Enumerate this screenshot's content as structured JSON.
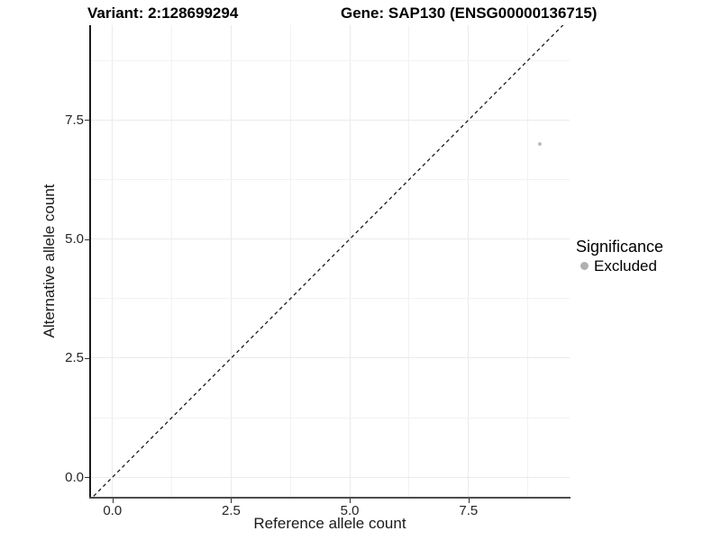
{
  "titles": {
    "variant": "Variant: 2:128699294",
    "gene": "Gene: SAP130 (ENSG00000136715)"
  },
  "legend": {
    "title": "Significance",
    "items": [
      {
        "label": "Excluded",
        "color": "#b0b0b0"
      }
    ]
  },
  "chart_data": {
    "type": "scatter",
    "title_left": "Variant: 2:128699294",
    "title_right": "Gene: SAP130 (ENSG00000136715)",
    "xlabel": "Reference allele count",
    "ylabel": "Alternative allele count",
    "xlim": [
      -0.47,
      9.63
    ],
    "ylim": [
      -0.43,
      9.49
    ],
    "x_ticks": [
      0,
      2.5,
      5,
      7.5
    ],
    "y_ticks": [
      0,
      2.5,
      5,
      7.5
    ],
    "x_tick_labels": [
      "0.0",
      "2.5",
      "5.0",
      "7.5"
    ],
    "y_tick_labels": [
      "0.0",
      "2.5",
      "5.0",
      "7.5"
    ],
    "grid": "major+minor",
    "legend_position": "right",
    "series": [
      {
        "name": "Excluded",
        "color": "#bdbdbd",
        "point_radius": 2,
        "points": [
          {
            "x": 9,
            "y": 7
          }
        ]
      }
    ],
    "reference_line": {
      "equation": "y = x",
      "style": "dashed",
      "color": "#1a1a1a"
    }
  }
}
